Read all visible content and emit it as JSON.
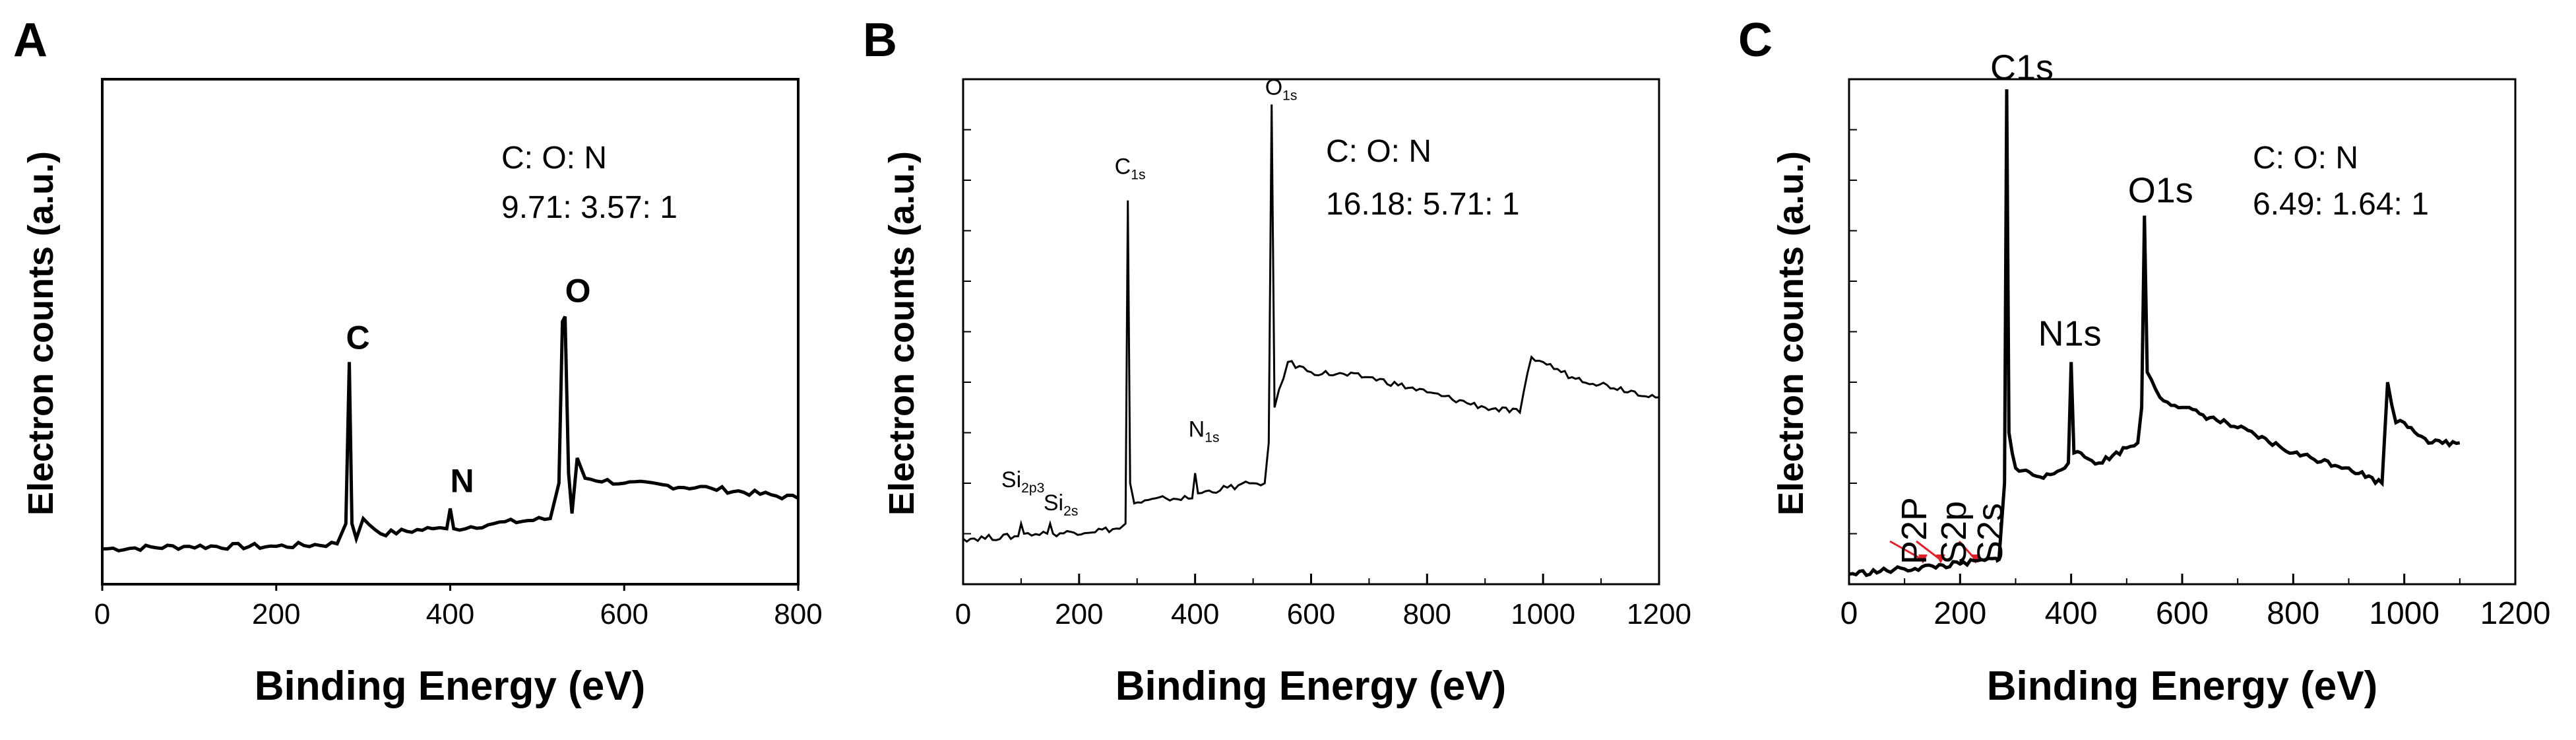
{
  "chart_data": [
    {
      "panel": "A",
      "type": "line",
      "xlabel": "Binding Energy (eV)",
      "ylabel": "Electron counts (a.u.)",
      "xlim": [
        0,
        800
      ],
      "xticks": [
        "0",
        "200",
        "400",
        "600",
        "800"
      ],
      "ratio_lines": [
        "C: O: N",
        "9.71: 3.57: 1"
      ],
      "peaks": [
        {
          "label": "C",
          "sub": "",
          "x": 284
        },
        {
          "label": "N",
          "sub": "",
          "x": 400
        },
        {
          "label": "O",
          "sub": "",
          "x": 532
        }
      ],
      "series": [
        {
          "points": [
            [
              0,
              0.07
            ],
            [
              100,
              0.075
            ],
            [
              200,
              0.075
            ],
            [
              270,
              0.08
            ],
            [
              280,
              0.12
            ],
            [
              284,
              0.44
            ],
            [
              287,
              0.12
            ],
            [
              292,
              0.09
            ],
            [
              300,
              0.13
            ],
            [
              320,
              0.1
            ],
            [
              380,
              0.11
            ],
            [
              396,
              0.11
            ],
            [
              400,
              0.15
            ],
            [
              404,
              0.11
            ],
            [
              450,
              0.12
            ],
            [
              515,
              0.13
            ],
            [
              525,
              0.2
            ],
            [
              529,
              0.52
            ],
            [
              532,
              0.53
            ],
            [
              536,
              0.22
            ],
            [
              540,
              0.14
            ],
            [
              546,
              0.25
            ],
            [
              555,
              0.21
            ],
            [
              600,
              0.2
            ],
            [
              700,
              0.19
            ],
            [
              800,
              0.17
            ]
          ]
        }
      ]
    },
    {
      "panel": "B",
      "type": "line",
      "xlabel": "Binding Energy (eV)",
      "ylabel": "Electron counts (a.u.)",
      "xlim": [
        0,
        1200
      ],
      "xticks": [
        "0",
        "200",
        "400",
        "600",
        "800",
        "1000",
        "1200"
      ],
      "ratio_lines": [
        "C: O: N",
        "16.18: 5.71: 1"
      ],
      "peaks": [
        {
          "label": "Si",
          "sub": "2p3",
          "x": 100
        },
        {
          "label": "Si",
          "sub": "2s",
          "x": 150
        },
        {
          "label": "C",
          "sub": "1s",
          "x": 284
        },
        {
          "label": "N",
          "sub": "1s",
          "x": 400
        },
        {
          "label": "O",
          "sub": "1s",
          "x": 532
        }
      ],
      "series": [
        {
          "points": [
            [
              0,
              0.09
            ],
            [
              95,
              0.095
            ],
            [
              100,
              0.12
            ],
            [
              105,
              0.1
            ],
            [
              145,
              0.1
            ],
            [
              150,
              0.12
            ],
            [
              155,
              0.1
            ],
            [
              270,
              0.11
            ],
            [
              280,
              0.12
            ],
            [
              284,
              0.76
            ],
            [
              288,
              0.2
            ],
            [
              295,
              0.16
            ],
            [
              350,
              0.17
            ],
            [
              395,
              0.17
            ],
            [
              400,
              0.22
            ],
            [
              405,
              0.18
            ],
            [
              500,
              0.2
            ],
            [
              520,
              0.2
            ],
            [
              527,
              0.28
            ],
            [
              532,
              0.95
            ],
            [
              537,
              0.35
            ],
            [
              560,
              0.44
            ],
            [
              600,
              0.42
            ],
            [
              700,
              0.41
            ],
            [
              800,
              0.38
            ],
            [
              900,
              0.35
            ],
            [
              960,
              0.34
            ],
            [
              980,
              0.45
            ],
            [
              1000,
              0.44
            ],
            [
              1050,
              0.41
            ],
            [
              1200,
              0.37
            ]
          ]
        }
      ]
    },
    {
      "panel": "C",
      "type": "line",
      "xlabel": "Binding Energy (eV)",
      "ylabel": "Electron counts (a.u.)",
      "xlim": [
        0,
        1200
      ],
      "xticks": [
        "0",
        "200",
        "400",
        "600",
        "800",
        "1000",
        "1200"
      ],
      "ratio_lines": [
        "C: O: N",
        "6.49: 1.64: 1"
      ],
      "peaks": [
        {
          "label": "C1s",
          "sub": "",
          "x": 284
        },
        {
          "label": "O1s",
          "sub": "",
          "x": 532
        },
        {
          "label": "N1s",
          "sub": "",
          "x": 400
        },
        {
          "label": "P2P",
          "sub": "",
          "x": 133
        },
        {
          "label": "S2p",
          "sub": "",
          "x": 165
        },
        {
          "label": "S2s",
          "sub": "",
          "x": 228
        }
      ],
      "series": [
        {
          "points": [
            [
              0,
              0.02
            ],
            [
              100,
              0.03
            ],
            [
              200,
              0.04
            ],
            [
              270,
              0.05
            ],
            [
              280,
              0.2
            ],
            [
              284,
              0.98
            ],
            [
              288,
              0.3
            ],
            [
              300,
              0.23
            ],
            [
              350,
              0.21
            ],
            [
              395,
              0.24
            ],
            [
              400,
              0.44
            ],
            [
              405,
              0.26
            ],
            [
              450,
              0.24
            ],
            [
              500,
              0.27
            ],
            [
              520,
              0.28
            ],
            [
              527,
              0.35
            ],
            [
              532,
              0.73
            ],
            [
              537,
              0.42
            ],
            [
              560,
              0.37
            ],
            [
              600,
              0.35
            ],
            [
              700,
              0.31
            ],
            [
              800,
              0.26
            ],
            [
              900,
              0.23
            ],
            [
              960,
              0.2
            ],
            [
              970,
              0.4
            ],
            [
              985,
              0.32
            ],
            [
              1000,
              0.32
            ],
            [
              1050,
              0.28
            ],
            [
              1100,
              0.28
            ]
          ]
        }
      ]
    }
  ]
}
